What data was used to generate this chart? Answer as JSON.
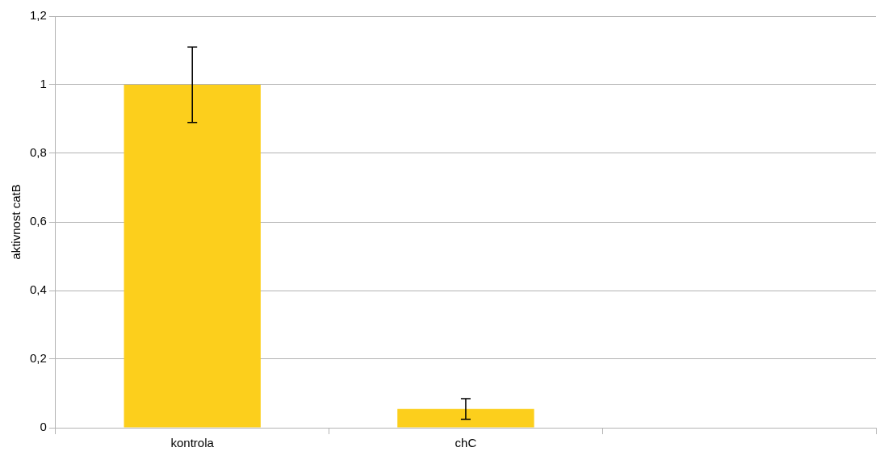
{
  "chart_data": {
    "type": "bar",
    "ylabel": "aktivnost catB",
    "categories": [
      "kontrola",
      "chC",
      null
    ],
    "values": [
      1,
      0.055,
      null
    ],
    "errors": [
      0.11,
      0.03,
      null
    ],
    "color": "#fccf1c",
    "ylim": [
      0,
      1.2
    ],
    "yticks": [
      0,
      {
        "value": 0.2,
        "label": "0,2"
      },
      {
        "value": 0.4,
        "label": "0,4"
      },
      {
        "value": 0.6,
        "label": "0,6"
      },
      {
        "value": 0.8,
        "label": "0,8"
      },
      1,
      {
        "value": 1.2,
        "label": "1,2"
      }
    ],
    "grid": "y",
    "legend": false
  }
}
